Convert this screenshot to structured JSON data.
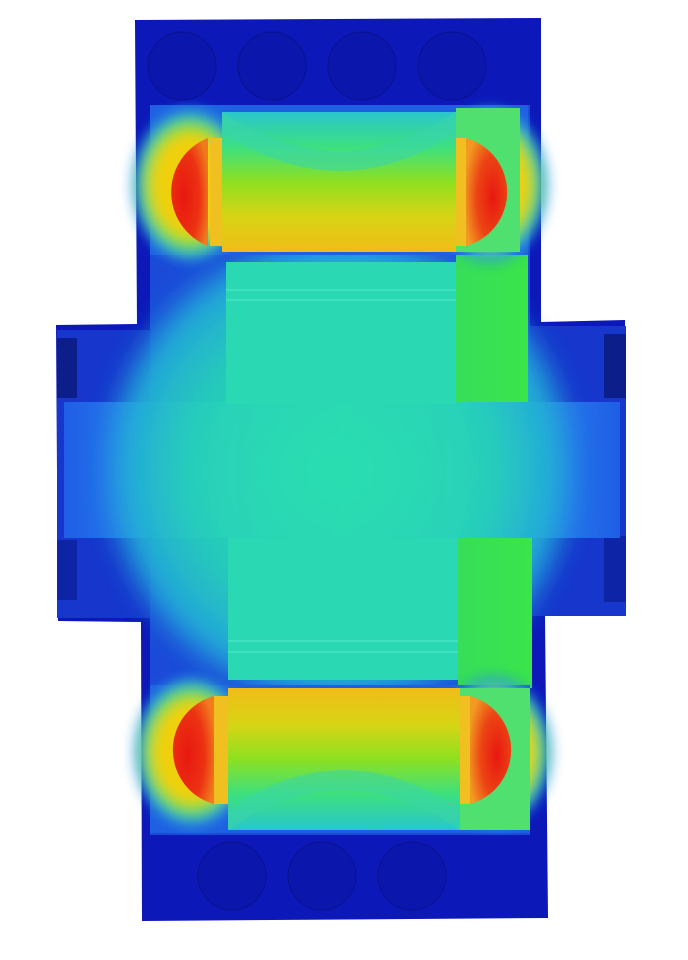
{
  "figure": {
    "kind": "field-contour-plot",
    "background": "#ffffff",
    "colors": {
      "low": "#0a14b4",
      "deep_blue": "#0f28c8",
      "blue": "#1e5ae6",
      "light_blue": "#2a82ee",
      "cyan": "#2ad6b4",
      "teal": "#28dcb0",
      "green": "#3ae44a",
      "yellow_green": "#b8e010",
      "yellow": "#f0c81a",
      "orange": "#f07a1c",
      "high": "#e81c10"
    },
    "regions": {
      "outer_housing": "low",
      "pole_pieces": "cyan",
      "side_flanges": "blue",
      "coils": [
        "upper-left",
        "upper-right",
        "lower-left",
        "lower-right"
      ],
      "bolt_holes_top": 4,
      "bolt_holes_bottom": 3
    }
  }
}
